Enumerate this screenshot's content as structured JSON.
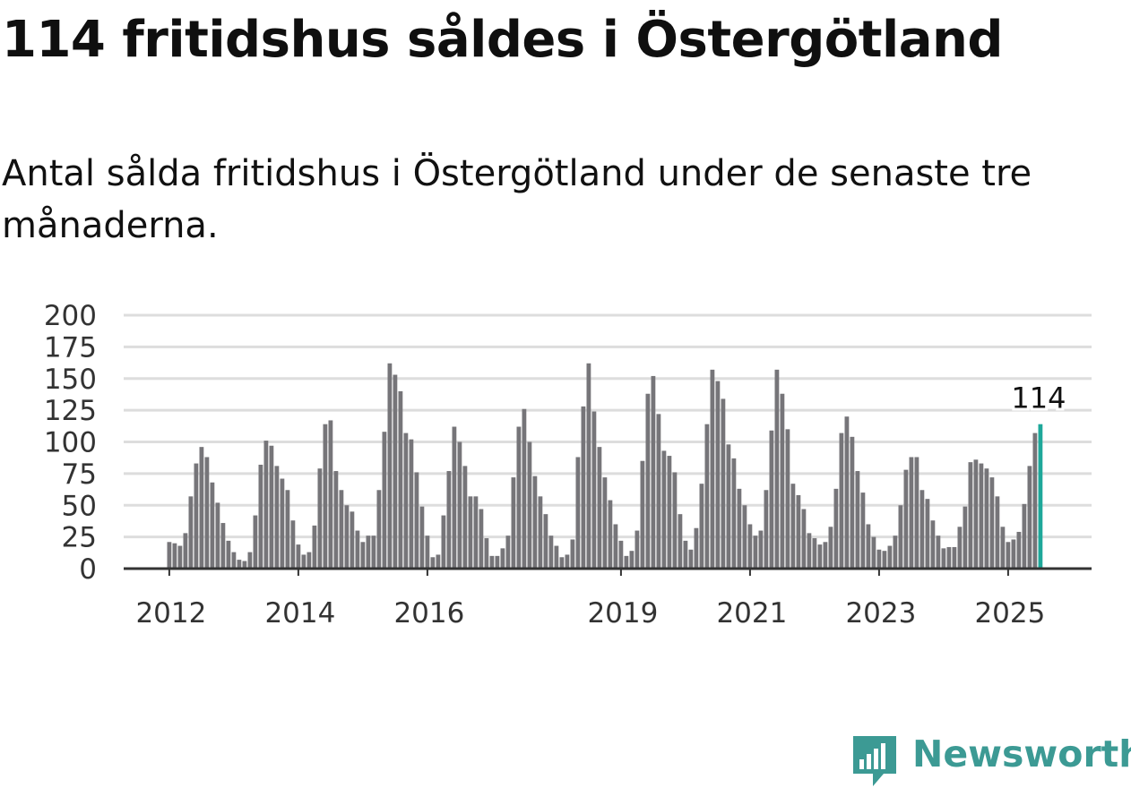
{
  "title": "114 fritidshus såldes i Östergötland",
  "subtitle": "Antal sålda fritidshus i Östergötland under de senaste tre månaderna.",
  "brand": {
    "name": "Newsworthy",
    "color": "#3c9a94",
    "icon": "newsworthy-logo-icon"
  },
  "colors": {
    "bar": "#767579",
    "highlight": "#1ea89a",
    "grid": "#dddddd",
    "axis": "#333333"
  },
  "chart_data": {
    "type": "bar",
    "title": "114 fritidshus såldes i Östergötland",
    "subtitle": "Antal sålda fritidshus i Östergötland under de senaste tre månaderna.",
    "x_start": "2012-01",
    "frequency": "monthly",
    "ylim": [
      0,
      200
    ],
    "yticks": [
      0,
      25,
      50,
      75,
      100,
      125,
      150,
      175,
      200
    ],
    "xtick_labels": [
      "2012",
      "2014",
      "2016",
      "2019",
      "2021",
      "2023",
      "2025"
    ],
    "grid": true,
    "legend": "none",
    "highlight_last": true,
    "last_value_label": "114",
    "values": [
      21,
      20,
      18,
      28,
      57,
      83,
      96,
      88,
      68,
      52,
      36,
      22,
      13,
      7,
      6,
      13,
      42,
      82,
      101,
      97,
      81,
      71,
      62,
      38,
      19,
      11,
      13,
      34,
      79,
      114,
      117,
      77,
      62,
      50,
      45,
      30,
      21,
      26,
      26,
      62,
      108,
      162,
      153,
      140,
      107,
      102,
      76,
      49,
      26,
      9,
      11,
      42,
      77,
      112,
      100,
      81,
      57,
      57,
      47,
      24,
      10,
      10,
      16,
      26,
      72,
      112,
      126,
      100,
      73,
      57,
      43,
      26,
      18,
      9,
      11,
      23,
      88,
      128,
      162,
      124,
      96,
      72,
      54,
      35,
      22,
      10,
      14,
      30,
      85,
      138,
      152,
      122,
      93,
      89,
      76,
      43,
      22,
      15,
      32,
      67,
      114,
      157,
      148,
      134,
      98,
      87,
      63,
      50,
      35,
      26,
      30,
      62,
      109,
      157,
      138,
      110,
      67,
      58,
      47,
      28,
      24,
      19,
      21,
      33,
      63,
      107,
      120,
      104,
      77,
      60,
      35,
      25,
      15,
      14,
      18,
      26,
      50,
      78,
      88,
      88,
      62,
      55,
      38,
      26,
      16,
      17,
      17,
      33,
      49,
      84,
      86,
      83,
      79,
      72,
      57,
      33,
      21,
      23,
      29,
      51,
      81,
      107,
      114
    ]
  }
}
